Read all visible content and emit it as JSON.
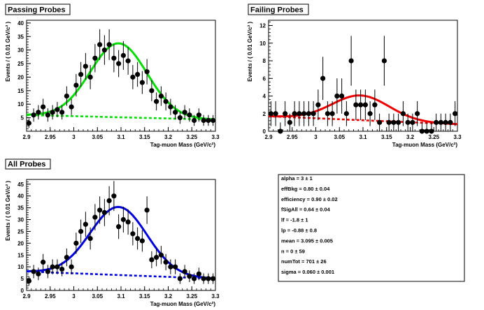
{
  "chart_data": [
    {
      "type": "scatter",
      "title": "Passing Probes",
      "xlabel": "Tag-muon Mass (GeV/c²)",
      "ylabel": "Events / ( 0.01 GeV/c² )",
      "xlim": [
        2.9,
        3.3
      ],
      "ylim": [
        0,
        41
      ],
      "xticks": [
        "2.9",
        "2.95",
        "3",
        "3.05",
        "3.1",
        "3.15",
        "3.2",
        "3.25",
        "3.3"
      ],
      "yticks": [
        "5",
        "10",
        "15",
        "20",
        "25",
        "30",
        "35",
        "40"
      ],
      "fit_color": "#00dd00",
      "x": [
        2.905,
        2.915,
        2.925,
        2.935,
        2.945,
        2.955,
        2.965,
        2.975,
        2.985,
        2.995,
        3.005,
        3.015,
        3.025,
        3.035,
        3.045,
        3.055,
        3.065,
        3.075,
        3.085,
        3.095,
        3.105,
        3.115,
        3.125,
        3.135,
        3.145,
        3.155,
        3.165,
        3.175,
        3.185,
        3.195,
        3.205,
        3.215,
        3.225,
        3.235,
        3.245,
        3.255,
        3.265,
        3.275,
        3.285,
        3.295
      ],
      "y": [
        3,
        6,
        7,
        9,
        6,
        7,
        8,
        7,
        13,
        9,
        17,
        21,
        24,
        20,
        27,
        32,
        30,
        32,
        27,
        25,
        28,
        26,
        20,
        21,
        18,
        22,
        15,
        11,
        13,
        11,
        9,
        7,
        5,
        7,
        6,
        4,
        6,
        4,
        4,
        4
      ],
      "signal_fit": {
        "mean": 3.095,
        "sigma": 0.06,
        "peak": 27.3
      },
      "background_fit": {
        "at_start": 6.0,
        "at_end": 4.3
      }
    },
    {
      "type": "scatter",
      "title": "Failing Probes",
      "xlabel": "Tag-muon Mass (GeV/c²)",
      "ylabel": "Events / ( 0.01 GeV/c² )",
      "xlim": [
        2.9,
        3.3
      ],
      "ylim": [
        0,
        12.6
      ],
      "xticks": [
        "2.9",
        "2.95",
        "3",
        "3.05",
        "3.1",
        "3.15",
        "3.2",
        "3.25",
        "3.3"
      ],
      "yticks": [
        "0",
        "2",
        "4",
        "6",
        "8",
        "10",
        "12"
      ],
      "fit_color": "#ee0000",
      "x": [
        2.905,
        2.915,
        2.925,
        2.935,
        2.945,
        2.955,
        2.965,
        2.975,
        2.985,
        2.995,
        3.005,
        3.015,
        3.025,
        3.035,
        3.045,
        3.055,
        3.065,
        3.075,
        3.085,
        3.095,
        3.105,
        3.115,
        3.125,
        3.135,
        3.145,
        3.155,
        3.165,
        3.175,
        3.185,
        3.195,
        3.205,
        3.215,
        3.225,
        3.235,
        3.245,
        3.255,
        3.265,
        3.275,
        3.285,
        3.295
      ],
      "y": [
        2,
        2,
        0,
        2,
        1,
        2,
        2,
        2,
        2,
        2,
        3,
        6,
        2,
        2,
        4,
        4,
        2,
        8,
        3,
        3,
        3,
        2,
        3,
        1,
        8,
        1,
        1,
        1,
        2,
        1,
        1,
        2,
        0,
        0,
        0,
        1,
        1,
        1,
        1,
        2
      ],
      "signal_fit": {
        "mean": 3.095,
        "sigma": 0.06,
        "peak": 2.8
      },
      "background_fit": {
        "at_start": 1.7,
        "at_end": 0.8
      }
    },
    {
      "type": "scatter",
      "title": "All Probes",
      "xlabel": "Tag-muon Mass (GeV/c²)",
      "ylabel": "Events / ( 0.01 GeV/c² )",
      "xlim": [
        2.9,
        3.3
      ],
      "ylim": [
        0,
        47
      ],
      "xticks": [
        "2.9",
        "2.95",
        "3",
        "3.05",
        "3.1",
        "3.15",
        "3.2",
        "3.25",
        "3.3"
      ],
      "yticks": [
        "0",
        "5",
        "10",
        "15",
        "20",
        "25",
        "30",
        "35",
        "40",
        "45"
      ],
      "fit_color": "#0000dd",
      "x": [
        2.905,
        2.915,
        2.925,
        2.935,
        2.945,
        2.955,
        2.965,
        2.975,
        2.985,
        2.995,
        3.005,
        3.015,
        3.025,
        3.035,
        3.045,
        3.055,
        3.065,
        3.075,
        3.085,
        3.095,
        3.105,
        3.115,
        3.125,
        3.135,
        3.145,
        3.155,
        3.165,
        3.175,
        3.185,
        3.195,
        3.205,
        3.215,
        3.225,
        3.235,
        3.245,
        3.255,
        3.265,
        3.275,
        3.285,
        3.295
      ],
      "y": [
        4,
        8,
        7,
        12,
        8,
        10,
        10,
        9,
        14,
        10,
        20,
        25,
        28,
        22,
        31,
        34,
        33,
        38,
        40,
        27,
        30,
        29,
        24,
        22,
        21,
        34,
        13,
        14,
        15,
        12,
        10,
        10,
        5,
        8,
        6,
        5,
        7,
        5,
        5,
        5
      ],
      "signal_fit": {
        "mean": 3.095,
        "sigma": 0.06,
        "peak": 28.8
      },
      "background_fit": {
        "at_start": 8.0,
        "at_end": 5.0
      }
    }
  ],
  "fit_results": [
    "alpha =  3 ± 1",
    "effBkg =  0.80 ± 0.04",
    "efficiency =  0.90 ± 0.02",
    "fSigAll =  0.64  ± 0.04",
    "lf = -1.8 ± 1",
    "lp = -0.88 ± 0.8",
    "mean =  3.095 ± 0.005",
    "n =  0 ± 59",
    "numTot =  701 ± 26",
    "sigma =  0.060 ± 0.001"
  ]
}
